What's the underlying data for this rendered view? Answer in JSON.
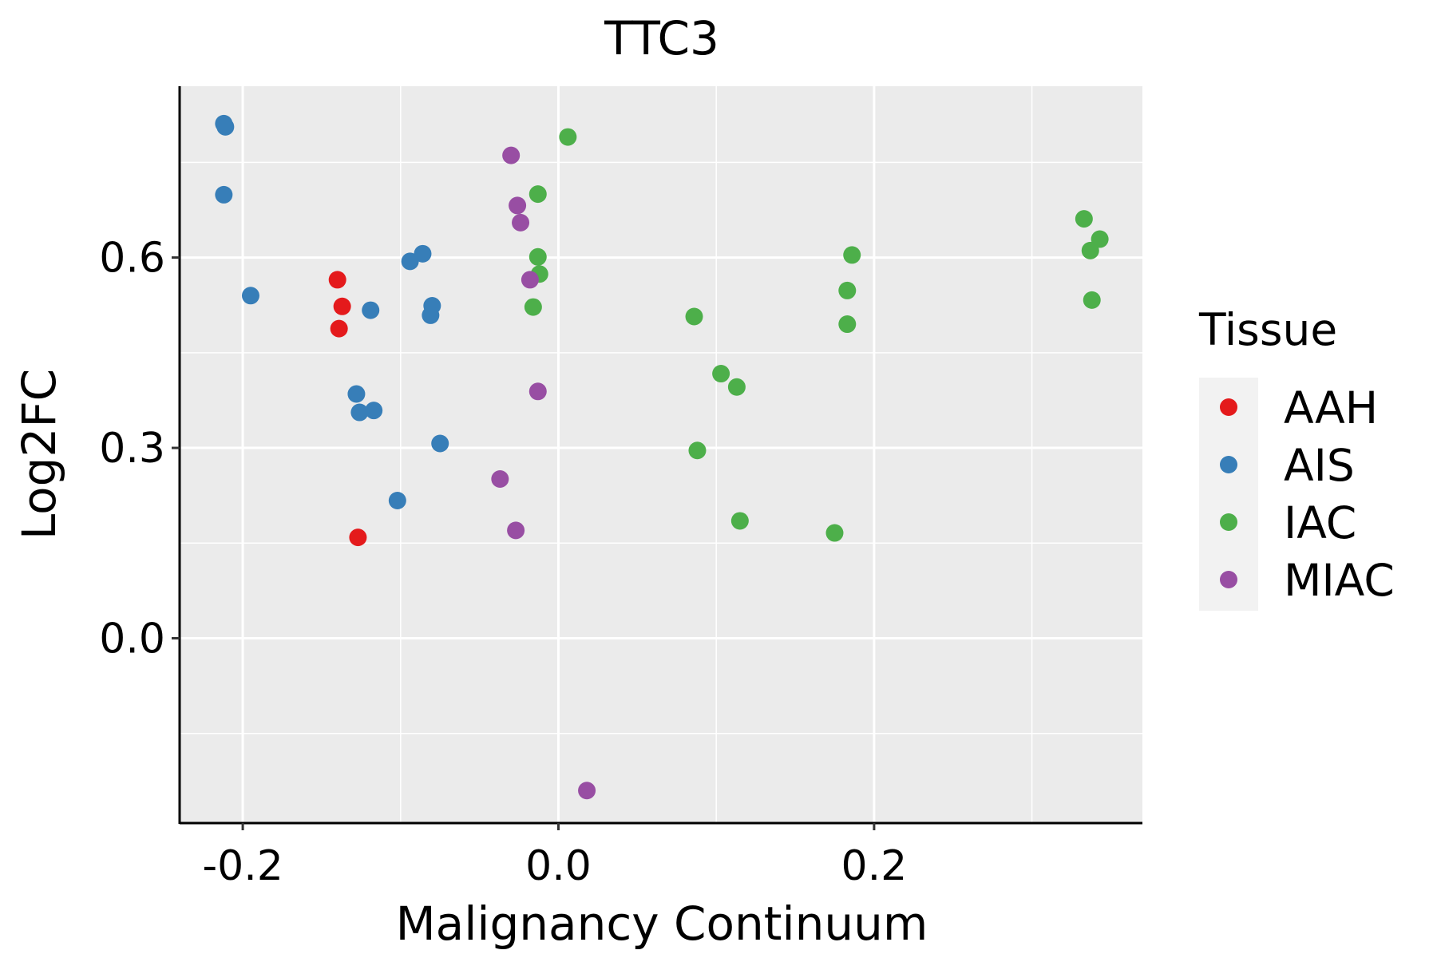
{
  "chart_data": {
    "type": "scatter",
    "title": "TTC3",
    "xlabel": "Malignancy Continuum",
    "ylabel": "Log2FC",
    "xlim": [
      -0.24,
      0.37
    ],
    "ylim": [
      -0.29,
      0.87
    ],
    "xticks": [
      -0.2,
      0.0,
      0.2
    ],
    "xtick_labels": [
      "-0.2",
      "0.0",
      "0.2"
    ],
    "yticks": [
      0.0,
      0.3,
      0.6
    ],
    "ytick_labels": [
      "0.0",
      "0.3",
      "0.6"
    ],
    "x_minor_ticks": [
      -0.1,
      0.1,
      0.3
    ],
    "y_minor_ticks": [
      -0.15,
      0.15,
      0.45,
      0.75
    ],
    "grid": true,
    "legend": {
      "title": "Tissue",
      "position": "right",
      "entries": [
        {
          "name": "AAH",
          "color": "#E41A1C"
        },
        {
          "name": "AIS",
          "color": "#377EB8"
        },
        {
          "name": "IAC",
          "color": "#4DAF4A"
        },
        {
          "name": "MIAC",
          "color": "#984EA3"
        }
      ]
    },
    "series": [
      {
        "name": "AAH",
        "color": "#E41A1C",
        "points": [
          {
            "x": -0.14,
            "y": 0.565
          },
          {
            "x": -0.137,
            "y": 0.523
          },
          {
            "x": -0.139,
            "y": 0.488
          },
          {
            "x": -0.127,
            "y": 0.159
          }
        ]
      },
      {
        "name": "AIS",
        "color": "#377EB8",
        "points": [
          {
            "x": -0.212,
            "y": 0.811
          },
          {
            "x": -0.211,
            "y": 0.806
          },
          {
            "x": -0.212,
            "y": 0.699
          },
          {
            "x": -0.195,
            "y": 0.54
          },
          {
            "x": -0.094,
            "y": 0.594
          },
          {
            "x": -0.086,
            "y": 0.606
          },
          {
            "x": -0.08,
            "y": 0.524
          },
          {
            "x": -0.081,
            "y": 0.509
          },
          {
            "x": -0.119,
            "y": 0.517
          },
          {
            "x": -0.128,
            "y": 0.385
          },
          {
            "x": -0.126,
            "y": 0.356
          },
          {
            "x": -0.117,
            "y": 0.359
          },
          {
            "x": -0.075,
            "y": 0.307
          },
          {
            "x": -0.102,
            "y": 0.217
          }
        ]
      },
      {
        "name": "IAC",
        "color": "#4DAF4A",
        "points": [
          {
            "x": 0.006,
            "y": 0.79
          },
          {
            "x": -0.013,
            "y": 0.7
          },
          {
            "x": -0.013,
            "y": 0.601
          },
          {
            "x": -0.012,
            "y": 0.574
          },
          {
            "x": -0.016,
            "y": 0.522
          },
          {
            "x": 0.086,
            "y": 0.507
          },
          {
            "x": 0.103,
            "y": 0.417
          },
          {
            "x": 0.113,
            "y": 0.396
          },
          {
            "x": 0.088,
            "y": 0.296
          },
          {
            "x": 0.115,
            "y": 0.185
          },
          {
            "x": 0.175,
            "y": 0.166
          },
          {
            "x": 0.186,
            "y": 0.604
          },
          {
            "x": 0.183,
            "y": 0.548
          },
          {
            "x": 0.183,
            "y": 0.495
          },
          {
            "x": 0.333,
            "y": 0.661
          },
          {
            "x": 0.343,
            "y": 0.629
          },
          {
            "x": 0.337,
            "y": 0.611
          },
          {
            "x": 0.338,
            "y": 0.533
          }
        ]
      },
      {
        "name": "MIAC",
        "color": "#984EA3",
        "points": [
          {
            "x": -0.03,
            "y": 0.761
          },
          {
            "x": -0.026,
            "y": 0.682
          },
          {
            "x": -0.024,
            "y": 0.655
          },
          {
            "x": -0.018,
            "y": 0.565
          },
          {
            "x": -0.013,
            "y": 0.389
          },
          {
            "x": -0.037,
            "y": 0.251
          },
          {
            "x": -0.027,
            "y": 0.17
          },
          {
            "x": 0.018,
            "y": -0.24
          }
        ]
      }
    ]
  }
}
